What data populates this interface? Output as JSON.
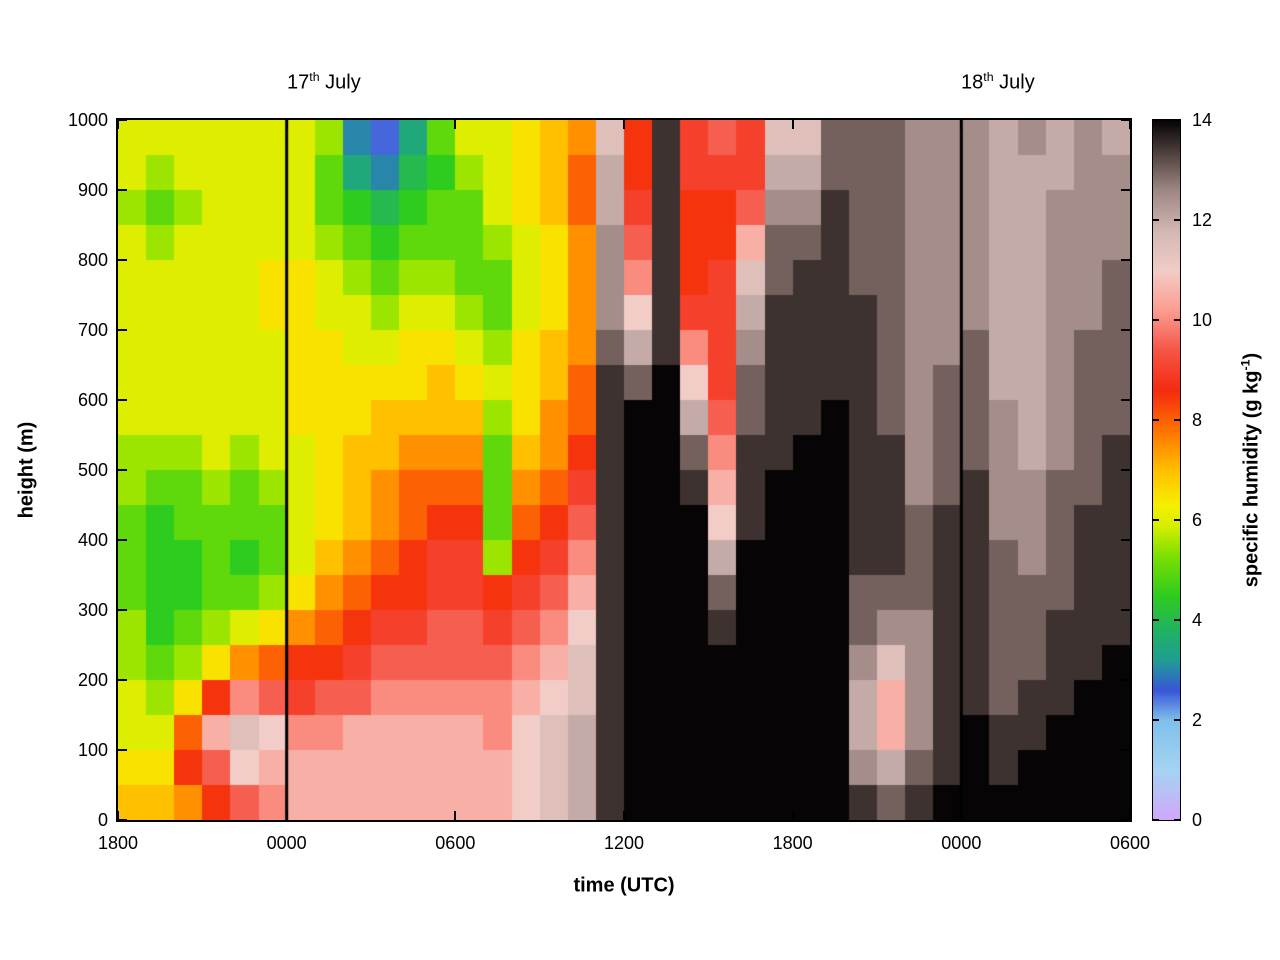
{
  "figure": {
    "background": "#ffffff",
    "frame_color": "#000000",
    "day_marker_color": "#000000"
  },
  "chart_data": {
    "type": "heatmap",
    "title": "",
    "xlabel": "time (UTC)",
    "ylabel": "height (m)",
    "colorbar_label": "specific humidity (g kg⁻¹)",
    "colorbar_label_parts": {
      "pre": "specific humidity (g kg",
      "sup": "-1",
      "post": ")"
    },
    "x_range_hours_from_start": [
      0,
      36
    ],
    "x_ticks": [
      {
        "hour": 0,
        "label": "1800"
      },
      {
        "hour": 6,
        "label": "0000"
      },
      {
        "hour": 12,
        "label": "0600"
      },
      {
        "hour": 18,
        "label": "1200"
      },
      {
        "hour": 24,
        "label": "1800"
      },
      {
        "hour": 30,
        "label": "0000"
      },
      {
        "hour": 36,
        "label": "0600"
      }
    ],
    "y_range_m": [
      0,
      1000
    ],
    "y_ticks": [
      0,
      100,
      200,
      300,
      400,
      500,
      600,
      700,
      800,
      900,
      1000
    ],
    "colorbar_range": [
      0,
      14
    ],
    "colorbar_ticks": [
      0,
      2,
      4,
      6,
      8,
      10,
      12,
      14
    ],
    "day_markers": [
      {
        "hour": 6,
        "label_parts": {
          "day": "17",
          "ordinal": "th",
          "month": " July"
        }
      },
      {
        "hour": 30,
        "label_parts": {
          "day": "18",
          "ordinal": "th",
          "month": " July"
        }
      }
    ],
    "colormap_stops": [
      [
        0.0,
        "#d2a7fa"
      ],
      [
        1.0,
        "#a5d3f3"
      ],
      [
        2.0,
        "#7ec0ea"
      ],
      [
        2.6,
        "#3a55d8"
      ],
      [
        3.2,
        "#1f9e94"
      ],
      [
        3.8,
        "#21b261"
      ],
      [
        4.5,
        "#2ecc1f"
      ],
      [
        5.3,
        "#7ee000"
      ],
      [
        5.9,
        "#d8ee00"
      ],
      [
        6.3,
        "#f6ef00"
      ],
      [
        7.0,
        "#ffc000"
      ],
      [
        7.8,
        "#ff7300"
      ],
      [
        8.6,
        "#f42b10"
      ],
      [
        9.4,
        "#f55545"
      ],
      [
        10.2,
        "#fb9d92"
      ],
      [
        11.0,
        "#f2ccc6"
      ],
      [
        11.8,
        "#d2b7b3"
      ],
      [
        12.6,
        "#9e8783"
      ],
      [
        13.3,
        "#544542"
      ],
      [
        14.0,
        "#060404"
      ]
    ],
    "grid": {
      "n_cols": 36,
      "n_rows": 20,
      "hours_per_col": 1,
      "row_height_m": 50,
      "units": "g/kg",
      "values_by_column_bottom_to_top": [
        [
          7,
          6.5,
          6,
          6,
          5.5,
          5.5,
          5,
          5,
          5,
          5.5,
          5.5,
          6,
          6,
          6,
          6,
          6,
          6,
          5.5,
          6,
          6
        ],
        [
          7,
          6.5,
          6,
          5.5,
          5,
          4.5,
          4.5,
          4.5,
          4.5,
          5,
          5.5,
          6,
          6,
          6,
          6,
          6,
          5.5,
          5,
          5.5,
          6
        ],
        [
          7.5,
          8.5,
          8,
          6.5,
          5.5,
          5,
          4.5,
          4.5,
          5,
          5,
          5.5,
          6,
          6,
          6,
          6,
          6,
          6,
          5.5,
          6,
          6
        ],
        [
          8.5,
          9.5,
          10.5,
          8.5,
          6.5,
          5.5,
          5,
          5,
          5,
          5.5,
          6,
          6,
          6,
          6,
          6,
          6,
          6,
          6,
          6,
          6
        ],
        [
          9.5,
          11,
          11.5,
          10,
          7.5,
          6,
          5,
          4.5,
          5,
          5,
          5.5,
          6,
          6,
          6,
          6,
          6,
          6,
          6,
          6,
          6
        ],
        [
          10,
          10.5,
          11,
          9.5,
          8,
          6.5,
          5.5,
          5,
          5,
          5.5,
          6,
          6,
          6,
          6,
          6.5,
          6.5,
          6,
          6,
          6,
          6
        ],
        [
          10.5,
          10.5,
          10,
          9,
          8.5,
          7.5,
          6.5,
          6,
          6,
          6,
          6,
          6.5,
          6.5,
          6.5,
          6.5,
          6.5,
          6,
          6,
          6,
          6
        ],
        [
          10.5,
          10.5,
          10,
          9.5,
          8.5,
          8,
          7.5,
          7,
          6.5,
          6.5,
          6.5,
          6.5,
          6.5,
          6.5,
          6,
          6,
          5.5,
          5,
          5,
          5.5
        ],
        [
          10.5,
          10.5,
          10.5,
          9.5,
          9,
          8.5,
          8,
          7.5,
          7,
          7,
          7,
          6.5,
          6.5,
          6,
          6,
          5.5,
          5,
          4.5,
          3.5,
          3
        ],
        [
          10.5,
          10.5,
          10.5,
          10,
          9.5,
          9,
          8.5,
          8,
          7.5,
          7.5,
          7,
          7,
          6.5,
          6,
          5.5,
          5,
          4.5,
          4,
          3,
          2.5
        ],
        [
          10.5,
          10.5,
          10.5,
          10,
          9.5,
          9,
          8.5,
          8.5,
          8,
          8,
          7.5,
          7,
          6.5,
          6.5,
          6,
          5.5,
          5,
          4.5,
          4,
          3.5
        ],
        [
          10.5,
          10.5,
          10.5,
          10,
          9.5,
          9.5,
          9,
          9,
          8.5,
          8,
          7.5,
          7,
          7,
          6.5,
          6,
          5.5,
          5,
          5,
          4.5,
          5
        ],
        [
          10.5,
          10.5,
          10.5,
          10,
          9.5,
          9.5,
          9,
          9,
          8.5,
          8,
          7.5,
          7,
          6.5,
          6,
          5.5,
          5,
          5,
          5,
          5.5,
          6
        ],
        [
          10.5,
          10.5,
          10,
          10,
          9.5,
          9,
          8.5,
          5.5,
          5,
          5,
          5,
          5.5,
          6,
          5.5,
          5,
          5,
          5.5,
          6,
          6,
          6
        ],
        [
          11,
          11,
          11,
          10.5,
          10,
          9.5,
          9,
          8.5,
          8,
          7.5,
          7,
          6.5,
          6.5,
          6.5,
          6,
          6,
          6,
          6.5,
          6.5,
          6.5
        ],
        [
          11.5,
          11.5,
          11.5,
          11,
          10.5,
          10,
          9.5,
          9,
          8.5,
          8,
          7.5,
          7.5,
          7,
          7,
          6.5,
          6.5,
          6.5,
          7,
          7,
          7
        ],
        [
          12,
          12,
          12,
          11.5,
          11.5,
          11,
          10.5,
          10,
          9.5,
          9,
          8.5,
          8,
          8,
          7.5,
          7.5,
          7.5,
          7.5,
          8,
          8,
          7.5
        ],
        [
          13.5,
          13.5,
          13.5,
          13.5,
          13.5,
          13.5,
          13.5,
          13.5,
          13.5,
          13.5,
          13.5,
          13.5,
          13.5,
          13,
          12.5,
          12.5,
          12.5,
          12,
          12,
          11.5
        ],
        [
          14,
          14,
          14,
          14,
          14,
          14,
          14,
          14,
          14,
          14,
          14,
          14,
          13,
          12,
          11,
          10,
          9.5,
          9,
          8.5,
          8.5
        ],
        [
          14,
          14,
          14,
          14,
          14,
          14,
          14,
          14,
          14,
          14,
          14,
          14,
          14,
          13.5,
          13.5,
          13.5,
          13.5,
          13.5,
          13.5,
          13.5
        ],
        [
          14,
          14,
          14,
          14,
          14,
          14,
          14,
          14,
          14,
          13.5,
          13,
          12,
          11,
          10,
          9,
          8.5,
          8.5,
          8.5,
          9,
          9
        ],
        [
          14,
          14,
          14,
          14,
          14,
          13.5,
          13,
          12,
          11,
          10.5,
          10,
          9.5,
          9,
          9,
          9,
          9,
          8.5,
          8.5,
          9,
          9.5
        ],
        [
          14,
          14,
          14,
          14,
          14,
          14,
          14,
          14,
          13.5,
          13.5,
          13.5,
          13,
          13,
          12.5,
          12,
          11.5,
          10.5,
          9.5,
          9,
          9
        ],
        [
          14,
          14,
          14,
          14,
          14,
          14,
          14,
          14,
          14,
          14,
          13.5,
          13.5,
          13.5,
          13.5,
          13.5,
          13,
          13,
          12.5,
          12,
          11.5
        ],
        [
          14,
          14,
          14,
          14,
          14,
          14,
          14,
          14,
          14,
          14,
          14,
          13.5,
          13.5,
          13.5,
          13.5,
          13.5,
          13,
          12.5,
          12,
          11.5
        ],
        [
          14,
          14,
          14,
          14,
          14,
          14,
          14,
          14,
          14,
          14,
          14,
          14,
          13.5,
          13.5,
          13.5,
          13.5,
          13.5,
          13.5,
          13,
          13
        ],
        [
          13.5,
          12.5,
          12,
          12,
          12.5,
          13,
          13,
          13.5,
          13.5,
          13.5,
          13.5,
          13.5,
          13.5,
          13.5,
          13.5,
          13,
          13,
          13,
          13,
          13
        ],
        [
          13,
          12,
          10.5,
          10.5,
          11.5,
          12.5,
          13,
          13.5,
          13.5,
          13.5,
          13.5,
          13,
          13,
          13,
          13,
          13,
          13,
          13,
          13,
          13
        ],
        [
          13.5,
          13,
          12.5,
          12.5,
          12.5,
          12.5,
          13,
          13,
          13,
          12.5,
          12.5,
          12.5,
          12.5,
          12.5,
          12.5,
          12.5,
          12.5,
          12.5,
          12.5,
          12.5
        ],
        [
          14,
          13.5,
          13.5,
          13.5,
          13.5,
          13.5,
          13.5,
          13.5,
          13.5,
          13,
          13,
          13,
          13,
          12.5,
          12.5,
          12.5,
          12.5,
          12.5,
          12.5,
          12.5
        ],
        [
          14,
          14,
          14,
          13.5,
          13.5,
          13.5,
          13.5,
          13.5,
          13.5,
          13.5,
          13,
          13,
          13,
          13,
          12.5,
          12.5,
          12.5,
          12.5,
          12.5,
          12.5
        ],
        [
          14,
          13.5,
          13.5,
          13,
          13,
          13,
          13,
          13,
          12.5,
          12.5,
          12.5,
          12.5,
          12,
          12,
          12,
          12,
          12,
          12,
          12,
          12
        ],
        [
          14,
          14,
          13.5,
          13.5,
          13,
          13,
          13,
          12.5,
          12.5,
          12.5,
          12,
          12,
          12,
          12,
          12,
          12,
          12,
          12,
          12,
          12.5
        ],
        [
          14,
          14,
          14,
          13.5,
          13.5,
          13.5,
          13,
          13,
          13,
          13,
          12.5,
          12.5,
          12.5,
          12.5,
          12.5,
          12.5,
          12.5,
          12.5,
          12,
          12
        ],
        [
          14,
          14,
          14,
          14,
          13.5,
          13.5,
          13.5,
          13.5,
          13.5,
          13,
          13,
          13,
          13,
          13,
          12.5,
          12.5,
          12.5,
          12.5,
          12.5,
          12.5
        ],
        [
          14,
          14,
          14,
          14,
          14,
          13.5,
          13.5,
          13.5,
          13.5,
          13.5,
          13.5,
          13,
          13,
          13,
          13,
          13,
          12.5,
          12.5,
          12.5,
          12
        ]
      ]
    }
  }
}
